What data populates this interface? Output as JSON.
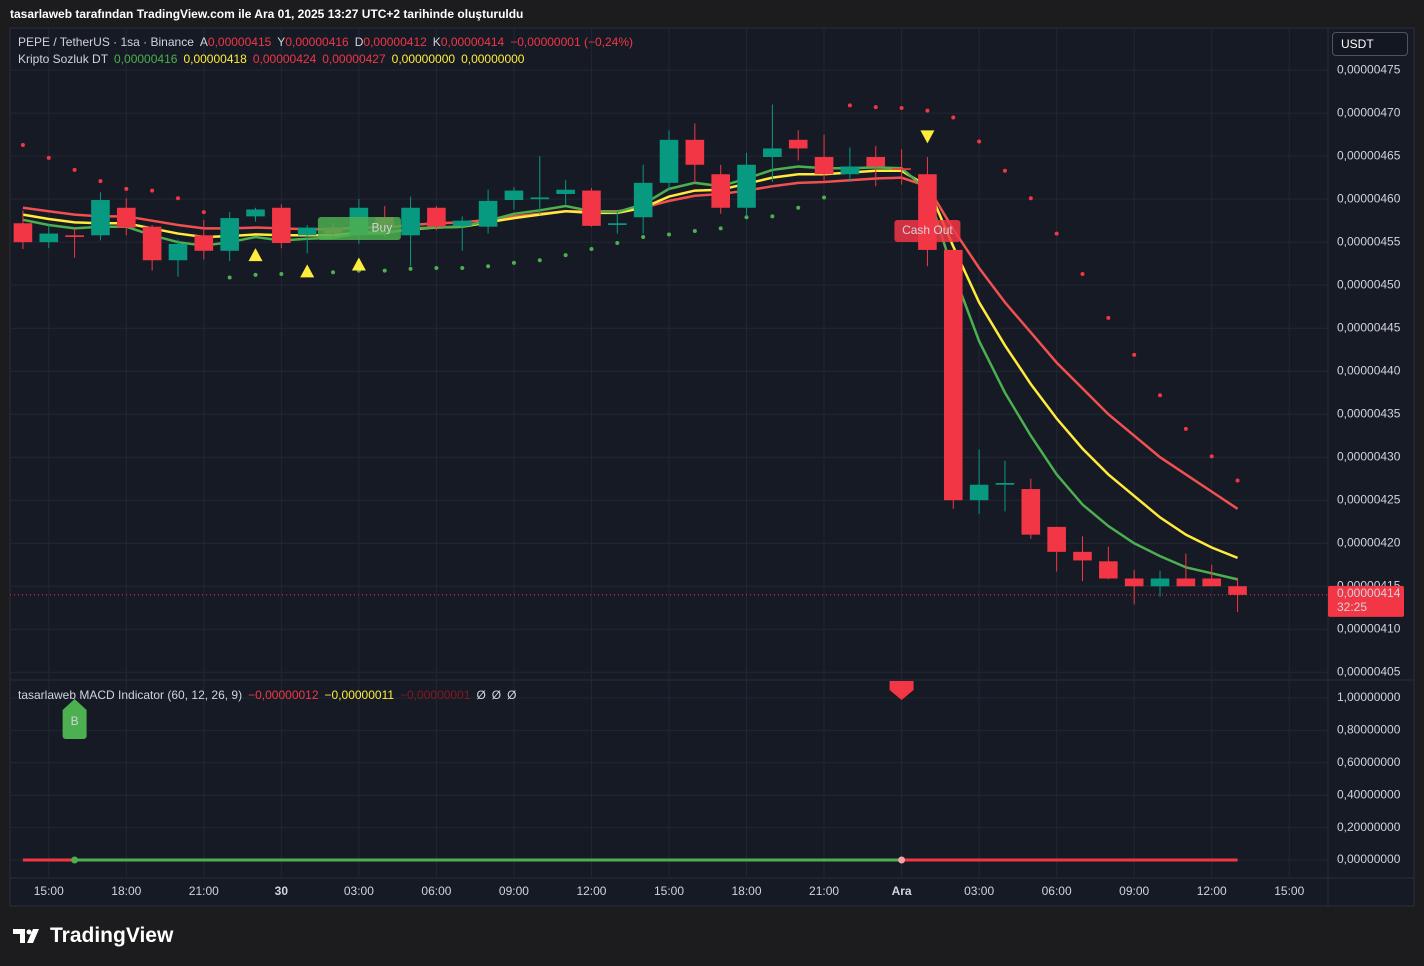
{
  "header": "tasarlaweb tarafından TradingView.com ile Ara 01, 2025 13:27 UTC+2 tarihinde oluşturuldu",
  "footer": "TradingView",
  "currency": "USDT",
  "chart_data": [
    {
      "type": "candlestick",
      "title": "PEPE / TetherUS · 1sa · Binance",
      "ohlc_legend": [
        {
          "name": "A",
          "value": "0,00000415"
        },
        {
          "name": "Y",
          "value": "0,00000416"
        },
        {
          "name": "D",
          "value": "0,00000412"
        },
        {
          "name": "K",
          "value": "0,00000414"
        }
      ],
      "change": "−0,00000001 (−0,24%)",
      "categories": [
        null,
        "15:00",
        null,
        null,
        "18:00",
        null,
        null,
        "21:00",
        null,
        null,
        "30",
        null,
        null,
        "03:00",
        null,
        null,
        "06:00",
        null,
        null,
        "09:00",
        null,
        null,
        "12:00",
        null,
        null,
        "15:00",
        null,
        null,
        "18:00",
        null,
        null,
        "21:00",
        null,
        null,
        "Ara",
        null,
        null,
        "03:00",
        null,
        null,
        "06:00",
        null,
        null,
        "09:00",
        null,
        null,
        "12:00",
        null,
        null,
        "15:00",
        null
      ],
      "open": [
        4.572e-06,
        4.55e-06,
        4.558e-06,
        4.558e-06,
        4.59e-06,
        4.568e-06,
        4.529e-06,
        4.558e-06,
        4.54e-06,
        4.58e-06,
        4.59e-06,
        4.558e-06,
        4.567e-06,
        4.558e-06,
        4.579e-06,
        4.558e-06,
        4.59e-06,
        4.569e-06,
        4.568e-06,
        4.599e-06,
        4.6e-06,
        4.606e-06,
        4.61e-06,
        4.57e-06,
        4.579e-06,
        4.619e-06,
        4.669e-06,
        4.629e-06,
        4.59e-06,
        4.649e-06,
        4.669e-06,
        4.649e-06,
        4.629e-06,
        4.649e-06,
        4.636e-06,
        4.629e-06,
        4.541e-06,
        4.25e-06,
        4.268e-06,
        4.263e-06,
        4.219e-06,
        4.19e-06,
        4.179e-06,
        4.159e-06,
        4.15e-06,
        4.159e-06,
        4.159e-06,
        4.15e-06,
        null,
        null,
        null
      ],
      "high": [
        4.587e-06,
        4.57e-06,
        4.566e-06,
        4.608e-06,
        4.601e-06,
        4.57e-06,
        4.553e-06,
        4.576e-06,
        4.585e-06,
        4.59e-06,
        4.594e-06,
        4.57e-06,
        4.572e-06,
        4.6e-06,
        4.592e-06,
        4.603e-06,
        4.592e-06,
        4.58e-06,
        4.611e-06,
        4.614e-06,
        4.65e-06,
        4.622e-06,
        4.613e-06,
        4.586e-06,
        4.64e-06,
        4.68e-06,
        4.688e-06,
        4.64e-06,
        4.654e-06,
        4.71e-06,
        4.68e-06,
        4.675e-06,
        4.66e-06,
        4.662e-06,
        4.658e-06,
        4.649e-06,
        4.541e-06,
        4.309e-06,
        4.296e-06,
        4.275e-06,
        4.219e-06,
        4.208e-06,
        4.196e-06,
        4.169e-06,
        4.168e-06,
        4.188e-06,
        4.175e-06,
        4.16e-06,
        null,
        null,
        null
      ],
      "low": [
        4.542e-06,
        4.543e-06,
        4.532e-06,
        4.552e-06,
        4.558e-06,
        4.517e-06,
        4.51e-06,
        4.53e-06,
        4.528e-06,
        4.574e-06,
        4.543e-06,
        4.537e-06,
        4.555e-06,
        4.548e-06,
        4.556e-06,
        4.522e-06,
        4.564e-06,
        4.54e-06,
        4.56e-06,
        4.588e-06,
        4.582e-06,
        4.594e-06,
        4.568e-06,
        4.56e-06,
        4.56e-06,
        4.61e-06,
        4.619e-06,
        4.583e-06,
        4.58e-06,
        4.62e-06,
        4.645e-06,
        4.62e-06,
        4.62e-06,
        4.615e-06,
        4.617e-06,
        4.522e-06,
        4.24e-06,
        4.234e-06,
        4.237e-06,
        4.205e-06,
        4.167e-06,
        4.156e-06,
        4.158e-06,
        4.129e-06,
        4.138e-06,
        4.15e-06,
        4.15e-06,
        4.12e-06,
        null,
        null,
        null
      ],
      "close": [
        4.55e-06,
        4.56e-06,
        4.556e-06,
        4.599e-06,
        4.567e-06,
        4.529e-06,
        4.548e-06,
        4.54e-06,
        4.578e-06,
        4.588e-06,
        4.549e-06,
        4.567e-06,
        4.56e-06,
        4.59e-06,
        4.567e-06,
        4.59e-06,
        4.568e-06,
        4.575e-06,
        4.598e-06,
        4.61e-06,
        4.602e-06,
        4.611e-06,
        4.569e-06,
        4.572e-06,
        4.619e-06,
        4.669e-06,
        4.64e-06,
        4.59e-06,
        4.64e-06,
        4.659e-06,
        4.659e-06,
        4.629e-06,
        4.638e-06,
        4.638e-06,
        4.634e-06,
        4.541e-06,
        4.25e-06,
        4.268e-06,
        4.27e-06,
        4.21e-06,
        4.19e-06,
        4.18e-06,
        4.159e-06,
        4.15e-06,
        4.159e-06,
        4.15e-06,
        4.15e-06,
        4.14e-06,
        null,
        null,
        null
      ],
      "up_color": "#089981",
      "down_color": "#f23645",
      "ylim": [
        4.041e-06,
        4.799e-06
      ],
      "yticks": [
        {
          "value": 4.05e-06,
          "label": "0,00000405"
        },
        {
          "value": 4.1e-06,
          "label": "0,00000410"
        },
        {
          "value": 4.15e-06,
          "label": "0,00000415"
        },
        {
          "value": 4.2e-06,
          "label": "0,00000420"
        },
        {
          "value": 4.25e-06,
          "label": "0,00000425"
        },
        {
          "value": 4.3e-06,
          "label": "0,00000430"
        },
        {
          "value": 4.35e-06,
          "label": "0,00000435"
        },
        {
          "value": 4.4e-06,
          "label": "0,00000440"
        },
        {
          "value": 4.45e-06,
          "label": "0,00000445"
        },
        {
          "value": 4.5e-06,
          "label": "0,00000450"
        },
        {
          "value": 4.55e-06,
          "label": "0,00000455"
        },
        {
          "value": 4.6e-06,
          "label": "0,00000460"
        },
        {
          "value": 4.65e-06,
          "label": "0,00000465"
        },
        {
          "value": 4.7e-06,
          "label": "0,00000470"
        },
        {
          "value": 4.75e-06,
          "label": "0,00000475"
        }
      ],
      "grid": true,
      "last_price": {
        "value": 4.14e-06,
        "label": "0,00000414"
      },
      "countdown": "32:25",
      "indicator": {
        "name": "Kripto Sozluk DT",
        "legend": [
          {
            "label": "0,00000416",
            "color": "#4caf50"
          },
          {
            "label": "0,00000418",
            "color": "#ffeb3b"
          },
          {
            "label": "0,00000424",
            "color": "#f23645"
          },
          {
            "label": "0,00000427",
            "color": "#f23645"
          },
          {
            "label": "0,00000000",
            "color": "#ffeb3b"
          },
          {
            "label": "0,00000000",
            "color": "#ffeb3b"
          }
        ],
        "lines": [
          {
            "color": "#f05050",
            "values": [
              4.59e-06,
              4.586e-06,
              4.582e-06,
              4.58e-06,
              4.58e-06,
              4.575e-06,
              4.57e-06,
              4.566e-06,
              4.566e-06,
              4.567e-06,
              4.566e-06,
              4.565e-06,
              4.565e-06,
              4.567e-06,
              4.567e-06,
              4.57e-06,
              4.572e-06,
              4.573e-06,
              4.576e-06,
              4.58e-06,
              4.583e-06,
              4.586e-06,
              4.586e-06,
              4.586e-06,
              4.59e-06,
              4.598e-06,
              4.604e-06,
              4.606e-06,
              4.61e-06,
              4.615e-06,
              4.619e-06,
              4.62e-06,
              4.622e-06,
              4.624e-06,
              4.625e-06,
              4.615e-06,
              4.565e-06,
              4.52e-06,
              4.48e-06,
              4.445e-06,
              4.41e-06,
              4.38e-06,
              4.35e-06,
              4.325e-06,
              4.3e-06,
              4.28e-06,
              4.26e-06,
              4.24e-06,
              null,
              null,
              null
            ]
          },
          {
            "color": "#ffeb3b",
            "values": [
              4.582e-06,
              4.577e-06,
              4.573e-06,
              4.572e-06,
              4.572e-06,
              4.566e-06,
              4.56e-06,
              4.556e-06,
              4.557e-06,
              4.559e-06,
              4.558e-06,
              4.558e-06,
              4.558e-06,
              4.561e-06,
              4.561e-06,
              4.565e-06,
              4.567e-06,
              4.568e-06,
              4.573e-06,
              4.578e-06,
              4.582e-06,
              4.586e-06,
              4.584e-06,
              4.584e-06,
              4.59e-06,
              4.603e-06,
              4.61e-06,
              4.611e-06,
              4.618e-06,
              4.625e-06,
              4.629e-06,
              4.629e-06,
              4.631e-06,
              4.633e-06,
              4.633e-06,
              4.615e-06,
              4.545e-06,
              4.48e-06,
              4.43e-06,
              4.385e-06,
              4.345e-06,
              4.31e-06,
              4.28e-06,
              4.255e-06,
              4.23e-06,
              4.21e-06,
              4.195e-06,
              4.183e-06,
              null,
              null,
              null
            ]
          },
          {
            "color": "#4caf50",
            "values": [
              4.576e-06,
              4.57e-06,
              4.566e-06,
              4.568e-06,
              4.568e-06,
              4.558e-06,
              4.55e-06,
              4.546e-06,
              4.55e-06,
              4.556e-06,
              4.552e-06,
              4.554e-06,
              4.555e-06,
              4.56e-06,
              4.56e-06,
              4.566e-06,
              4.567e-06,
              4.568e-06,
              4.575e-06,
              4.583e-06,
              4.587e-06,
              4.592e-06,
              4.586e-06,
              4.585e-06,
              4.594e-06,
              4.612e-06,
              4.619e-06,
              4.615e-06,
              4.624e-06,
              4.634e-06,
              4.638e-06,
              4.636e-06,
              4.636e-06,
              4.637e-06,
              4.636e-06,
              4.61e-06,
              4.515e-06,
              4.435e-06,
              4.375e-06,
              4.325e-06,
              4.28e-06,
              4.245e-06,
              4.22e-06,
              4.2e-06,
              4.185e-06,
              4.172e-06,
              4.165e-06,
              4.158e-06,
              null,
              null,
              null
            ]
          }
        ],
        "sar": {
          "up_color": "#4caf50",
          "down_color": "#f23645",
          "values": [
            4.663e-06,
            4.648e-06,
            4.634e-06,
            4.621e-06,
            4.612e-06,
            4.61e-06,
            4.601e-06,
            4.585e-06,
            4.509e-06,
            4.512e-06,
            4.513e-06,
            4.514e-06,
            4.515e-06,
            4.517e-06,
            4.517e-06,
            4.519e-06,
            4.52e-06,
            4.52e-06,
            4.522e-06,
            4.526e-06,
            4.529e-06,
            4.535e-06,
            4.542e-06,
            4.549e-06,
            4.556e-06,
            4.559e-06,
            4.563e-06,
            4.566e-06,
            4.579e-06,
            4.58e-06,
            4.59e-06,
            4.602e-06,
            4.709e-06,
            4.707e-06,
            4.706e-06,
            4.703e-06,
            4.695e-06,
            4.667e-06,
            4.633e-06,
            4.601e-06,
            4.56e-06,
            4.513e-06,
            4.462e-06,
            4.419e-06,
            4.372e-06,
            4.333e-06,
            4.301e-06,
            4.273e-06,
            null,
            null,
            null
          ]
        },
        "buy_markers": [
          {
            "index": 9,
            "value": 4.535e-06
          },
          {
            "index": 11,
            "value": 4.516e-06
          },
          {
            "index": 13,
            "value": 4.524e-06
          }
        ],
        "sell_markers": [
          {
            "index": 35,
            "value": 4.673e-06
          }
        ],
        "color": "#ffeb3b",
        "buy_label": "Buy",
        "sell_label": "Cash Out"
      }
    },
    {
      "type": "line",
      "title": "tasarlaweb MACD Indicator (60, 12, 26, 9)",
      "legend": [
        {
          "label": "−0,00000012",
          "color": "#f23645"
        },
        {
          "label": "−0,00000011",
          "color": "#ffeb3b"
        },
        {
          "label": "−0,00000001",
          "color": "#801922"
        },
        {
          "label": "Ø",
          "color": "#d1d4dc"
        },
        {
          "label": "Ø",
          "color": "#d1d4dc"
        },
        {
          "label": "Ø",
          "color": "#d1d4dc"
        }
      ],
      "values": [
        0,
        0,
        0,
        0,
        0,
        0,
        0,
        0,
        0,
        0,
        0,
        0,
        0,
        0,
        0,
        0,
        0,
        0,
        0,
        0,
        0,
        0,
        0,
        0,
        0,
        0,
        0,
        0,
        0,
        0,
        0,
        0,
        0,
        0,
        0,
        0,
        0,
        0,
        0,
        0,
        0,
        0,
        0,
        0,
        0,
        0,
        0,
        0,
        null,
        null,
        null
      ],
      "up_color": "#4caf50",
      "down_color": "#f23645",
      "buy_signal": {
        "index": 2,
        "label": "B"
      },
      "sell_signal": {
        "index": 34
      },
      "ylim": [
        -0.111,
        1.111
      ],
      "yticks": [
        {
          "value": 0,
          "label": "0,00000000"
        },
        {
          "value": 0.2,
          "label": "0,20000000"
        },
        {
          "value": 0.4,
          "label": "0,40000000"
        },
        {
          "value": 0.6,
          "label": "0,60000000"
        },
        {
          "value": 0.8,
          "label": "0,80000000"
        },
        {
          "value": 1,
          "label": "1,00000000"
        }
      ],
      "grid": true
    }
  ]
}
